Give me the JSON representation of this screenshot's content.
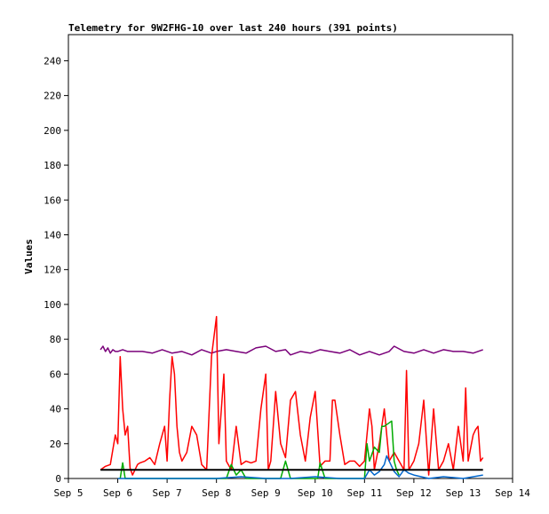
{
  "chart_data": {
    "type": "line",
    "title": "Telemetry for 9W2FHG-10 over last 240 hours (391 points)",
    "ylabel": "Values",
    "xlabel": "",
    "ylim": [
      0,
      255
    ],
    "yticks": [
      0,
      20,
      40,
      60,
      80,
      100,
      120,
      140,
      160,
      180,
      200,
      220,
      240
    ],
    "xlim": [
      0,
      9
    ],
    "xticks": [
      {
        "x": 0,
        "label": "Sep 5"
      },
      {
        "x": 1,
        "label": "Sep 6"
      },
      {
        "x": 2,
        "label": "Sep 7"
      },
      {
        "x": 3,
        "label": "Sep 8"
      },
      {
        "x": 4,
        "label": "Sep 9"
      },
      {
        "x": 5,
        "label": "Sep 10"
      },
      {
        "x": 6,
        "label": "Sep 11"
      },
      {
        "x": 7,
        "label": "Sep 12"
      },
      {
        "x": 8,
        "label": "Sep 13"
      },
      {
        "x": 9,
        "label": "Sep 14"
      }
    ],
    "grid": false,
    "legend": "none",
    "series": [
      {
        "color": "#7a007a",
        "x": [
          0.65,
          0.7,
          0.75,
          0.8,
          0.85,
          0.9,
          0.95,
          1.0,
          1.1,
          1.2,
          1.3,
          1.5,
          1.7,
          1.9,
          2.1,
          2.3,
          2.5,
          2.7,
          2.9,
          3.0,
          3.2,
          3.4,
          3.6,
          3.8,
          4.0,
          4.2,
          4.4,
          4.5,
          4.7,
          4.9,
          5.1,
          5.3,
          5.5,
          5.7,
          5.9,
          6.1,
          6.3,
          6.5,
          6.6,
          6.8,
          7.0,
          7.2,
          7.4,
          7.6,
          7.8,
          8.0,
          8.2,
          8.4
        ],
        "y": [
          74,
          76,
          73,
          75,
          72,
          74,
          73,
          73,
          74,
          73,
          73,
          73,
          72,
          74,
          72,
          73,
          71,
          74,
          72,
          73,
          74,
          73,
          72,
          75,
          76,
          73,
          74,
          71,
          73,
          72,
          74,
          73,
          72,
          74,
          71,
          73,
          71,
          73,
          76,
          73,
          72,
          74,
          72,
          74,
          73,
          73,
          72,
          74
        ]
      },
      {
        "color": "#ff0000",
        "x": [
          0.65,
          0.75,
          0.85,
          0.95,
          1.0,
          1.05,
          1.1,
          1.15,
          1.2,
          1.25,
          1.3,
          1.35,
          1.4,
          1.45,
          1.55,
          1.65,
          1.75,
          1.85,
          1.95,
          2.0,
          2.05,
          2.1,
          2.15,
          2.2,
          2.25,
          2.3,
          2.4,
          2.5,
          2.6,
          2.7,
          2.8,
          2.9,
          3.0,
          3.05,
          3.1,
          3.15,
          3.2,
          3.3,
          3.4,
          3.5,
          3.6,
          3.7,
          3.8,
          3.9,
          4.0,
          4.05,
          4.1,
          4.15,
          4.2,
          4.3,
          4.4,
          4.5,
          4.6,
          4.7,
          4.8,
          4.9,
          5.0,
          5.1,
          5.2,
          5.3,
          5.35,
          5.4,
          5.5,
          5.6,
          5.7,
          5.8,
          5.9,
          6.0,
          6.1,
          6.15,
          6.2,
          6.3,
          6.4,
          6.5,
          6.6,
          6.7,
          6.8,
          6.85,
          6.9,
          7.0,
          7.1,
          7.2,
          7.3,
          7.4,
          7.5,
          7.6,
          7.7,
          7.8,
          7.9,
          8.0,
          8.05,
          8.1,
          8.2,
          8.25,
          8.3,
          8.35,
          8.4
        ],
        "y": [
          5,
          7,
          8,
          25,
          20,
          70,
          40,
          25,
          30,
          6,
          2,
          5,
          8,
          9,
          10,
          12,
          8,
          20,
          30,
          10,
          45,
          70,
          60,
          30,
          15,
          10,
          15,
          30,
          25,
          8,
          5,
          70,
          93,
          20,
          40,
          60,
          10,
          5,
          30,
          8,
          10,
          9,
          10,
          40,
          60,
          5,
          10,
          30,
          50,
          20,
          12,
          45,
          50,
          25,
          10,
          35,
          50,
          7,
          10,
          10,
          45,
          45,
          25,
          8,
          10,
          10,
          7,
          10,
          40,
          30,
          5,
          20,
          40,
          10,
          15,
          10,
          5,
          62,
          5,
          10,
          20,
          45,
          2,
          40,
          5,
          10,
          20,
          5,
          30,
          10,
          52,
          10,
          25,
          28,
          30,
          10,
          12
        ]
      },
      {
        "color": "#00aa00",
        "x": [
          1.05,
          1.1,
          1.15,
          3.2,
          3.3,
          3.4,
          3.5,
          3.6,
          4.3,
          4.4,
          4.5,
          5.05,
          5.1,
          5.2,
          6.0,
          6.05,
          6.1,
          6.2,
          6.3,
          6.35,
          6.4,
          6.5,
          6.55,
          6.6,
          6.65,
          6.7
        ],
        "y": [
          0,
          9,
          0,
          0,
          8,
          2,
          5,
          0,
          0,
          10,
          0,
          0,
          9,
          0,
          0,
          20,
          10,
          18,
          15,
          30,
          30,
          32,
          33,
          10,
          5,
          2
        ]
      },
      {
        "color": "#0066cc",
        "x": [
          1.0,
          1.5,
          2.0,
          3.0,
          3.5,
          4.0,
          4.5,
          5.0,
          5.5,
          6.0,
          6.1,
          6.2,
          6.3,
          6.4,
          6.45,
          6.5,
          6.6,
          6.7,
          6.8,
          6.9,
          7.0,
          7.3,
          7.6,
          8.0,
          8.4
        ],
        "y": [
          0,
          0,
          0,
          0,
          1,
          0,
          0,
          1,
          0,
          0,
          5,
          2,
          4,
          8,
          13,
          10,
          4,
          1,
          5,
          3,
          2,
          0,
          1,
          0,
          2
        ]
      },
      {
        "color": "#000000",
        "x": [
          0.65,
          8.4
        ],
        "y": [
          5,
          5
        ]
      }
    ]
  }
}
